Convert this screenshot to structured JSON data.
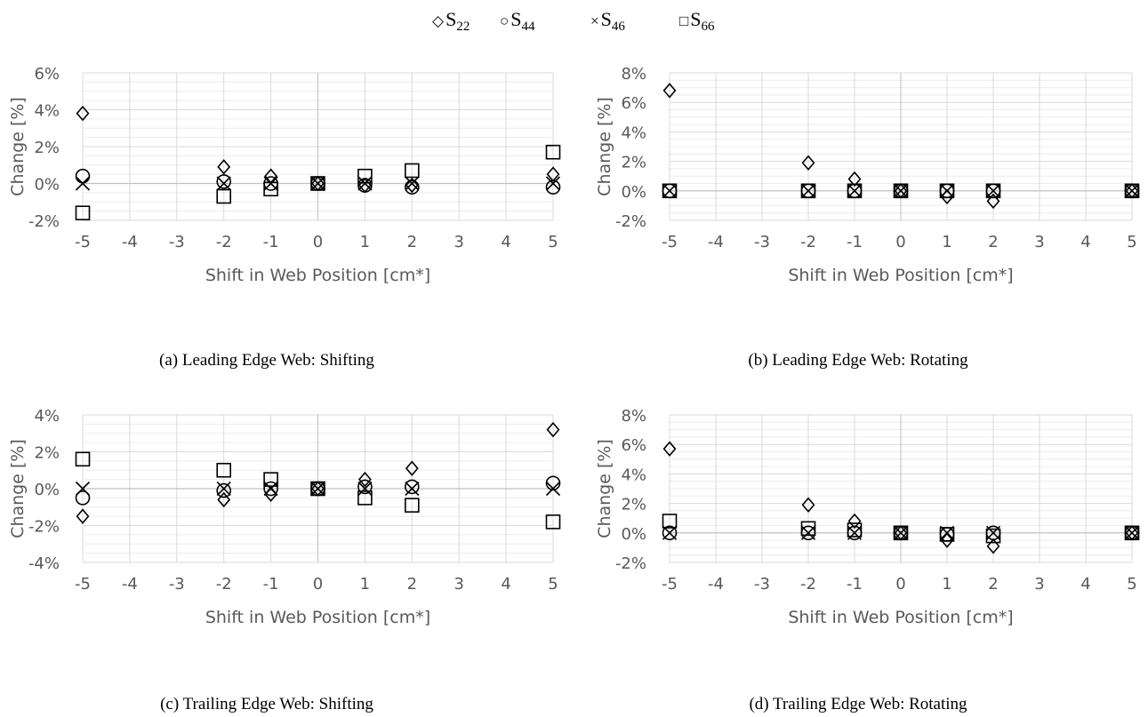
{
  "legend": {
    "items": [
      {
        "marker": "diamond",
        "symbol": "◇",
        "label": "S",
        "sub": "22"
      },
      {
        "marker": "circle",
        "symbol": "○",
        "label": "S",
        "sub": "44"
      },
      {
        "marker": "x",
        "symbol": "×",
        "label": "S",
        "sub": "46"
      },
      {
        "marker": "square",
        "symbol": "□",
        "label": "S",
        "sub": "66"
      }
    ]
  },
  "colors": {
    "grid_major": "#d9d9d9",
    "grid_minor": "#ececec",
    "zero_line": "#bfbfbf",
    "marker": "#000000",
    "axis_text": "#595959"
  },
  "chart_data": [
    {
      "type": "scatter",
      "caption": "(a) Leading Edge Web: Shifting",
      "xlabel": "Shift in Web Position [cm*]",
      "ylabel": "Change [%]",
      "xlim": [
        -5,
        5
      ],
      "ylim": [
        -2,
        6
      ],
      "x_ticks": [
        "-5",
        "-4",
        "-3",
        "-2",
        "-1",
        "0",
        "1",
        "2",
        "3",
        "4",
        "5"
      ],
      "y_ticks": [
        "-2%",
        "0%",
        "2%",
        "4%",
        "6%"
      ],
      "x": [
        -5,
        -2,
        -1,
        0,
        1,
        2,
        5
      ],
      "series": [
        {
          "name": "S22",
          "marker": "diamond",
          "values": [
            3.8,
            0.9,
            0.4,
            0.0,
            -0.1,
            -0.1,
            0.5
          ]
        },
        {
          "name": "S44",
          "marker": "circle",
          "values": [
            0.4,
            0.1,
            0.0,
            0.0,
            -0.1,
            -0.2,
            -0.2
          ]
        },
        {
          "name": "S46",
          "marker": "x",
          "values": [
            0.0,
            0.0,
            0.0,
            0.0,
            0.0,
            0.0,
            0.0
          ]
        },
        {
          "name": "S66",
          "marker": "square",
          "values": [
            -1.6,
            -0.7,
            -0.3,
            0.0,
            0.4,
            0.7,
            1.7
          ]
        }
      ]
    },
    {
      "type": "scatter",
      "caption": "(b) Leading Edge Web: Rotating",
      "xlabel": "Shift in Web Position [cm*]",
      "ylabel": "Change [%]",
      "xlim": [
        -5,
        5
      ],
      "ylim": [
        -2,
        8
      ],
      "x_ticks": [
        "-5",
        "-4",
        "-3",
        "-2",
        "-1",
        "0",
        "1",
        "2",
        "3",
        "4",
        "5"
      ],
      "y_ticks": [
        "-2%",
        "0%",
        "2%",
        "4%",
        "6%",
        "8%"
      ],
      "x": [
        -5,
        -2,
        -1,
        0,
        1,
        2,
        5
      ],
      "series": [
        {
          "name": "S22",
          "marker": "diamond",
          "values": [
            6.8,
            1.9,
            0.8,
            0.0,
            -0.4,
            -0.7,
            0.0
          ]
        },
        {
          "name": "S44",
          "marker": "circle",
          "values": [
            0.0,
            0.0,
            0.0,
            0.0,
            0.0,
            0.0,
            0.0
          ]
        },
        {
          "name": "S46",
          "marker": "x",
          "values": [
            0.0,
            0.0,
            0.0,
            0.0,
            0.0,
            0.0,
            0.0
          ]
        },
        {
          "name": "S66",
          "marker": "square",
          "values": [
            0.0,
            0.0,
            0.0,
            0.0,
            0.0,
            0.0,
            0.0
          ]
        }
      ]
    },
    {
      "type": "scatter",
      "caption": "(c) Trailing Edge Web: Shifting",
      "xlabel": "Shift in Web Position [cm*]",
      "ylabel": "Change [%]",
      "xlim": [
        -5,
        5
      ],
      "ylim": [
        -4,
        4
      ],
      "x_ticks": [
        "-5",
        "-4",
        "-3",
        "-2",
        "-1",
        "0",
        "1",
        "2",
        "3",
        "4",
        "5"
      ],
      "y_ticks": [
        "-4%",
        "-2%",
        "0%",
        "2%",
        "4%"
      ],
      "x": [
        -5,
        -2,
        -1,
        0,
        1,
        2,
        5
      ],
      "series": [
        {
          "name": "S22",
          "marker": "diamond",
          "values": [
            -1.5,
            -0.6,
            -0.3,
            0.0,
            0.5,
            1.1,
            3.2
          ]
        },
        {
          "name": "S44",
          "marker": "circle",
          "values": [
            -0.5,
            -0.1,
            0.0,
            0.0,
            0.1,
            0.1,
            0.3
          ]
        },
        {
          "name": "S46",
          "marker": "x",
          "values": [
            0.0,
            0.0,
            0.0,
            0.0,
            0.0,
            0.0,
            0.0
          ]
        },
        {
          "name": "S66",
          "marker": "square",
          "values": [
            1.6,
            1.0,
            0.5,
            0.0,
            -0.5,
            -0.9,
            -1.8
          ]
        }
      ]
    },
    {
      "type": "scatter",
      "caption": "(d) Trailing Edge Web: Rotating",
      "xlabel": "Shift in Web Position [cm*]",
      "ylabel": "Change [%]",
      "xlim": [
        -5,
        5
      ],
      "ylim": [
        -2,
        8
      ],
      "x_ticks": [
        "-5",
        "-4",
        "-3",
        "-2",
        "-1",
        "0",
        "1",
        "2",
        "3",
        "4",
        "5"
      ],
      "y_ticks": [
        "-2%",
        "0%",
        "2%",
        "4%",
        "6%",
        "8%"
      ],
      "x": [
        -5,
        -2,
        -1,
        0,
        1,
        2,
        5
      ],
      "series": [
        {
          "name": "S22",
          "marker": "diamond",
          "values": [
            5.7,
            1.9,
            0.8,
            0.0,
            -0.5,
            -0.9,
            0.0
          ]
        },
        {
          "name": "S44",
          "marker": "circle",
          "values": [
            0.0,
            0.0,
            0.0,
            0.0,
            -0.1,
            0.0,
            0.0
          ]
        },
        {
          "name": "S46",
          "marker": "x",
          "values": [
            0.0,
            0.0,
            0.0,
            0.0,
            0.0,
            0.0,
            0.0
          ]
        },
        {
          "name": "S66",
          "marker": "square",
          "values": [
            0.8,
            0.3,
            0.2,
            0.0,
            -0.1,
            -0.2,
            0.0
          ]
        }
      ]
    }
  ]
}
